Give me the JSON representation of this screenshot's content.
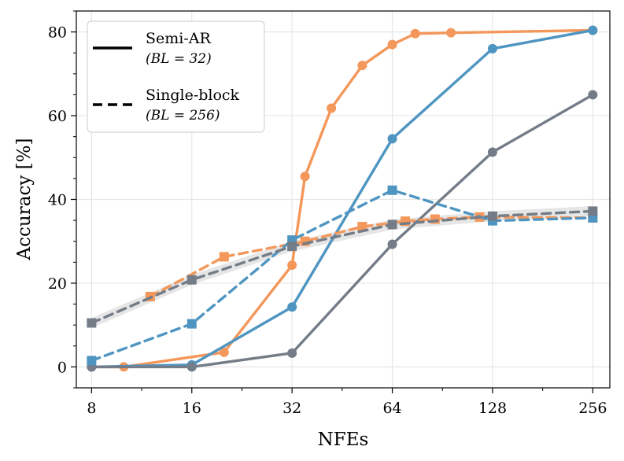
{
  "chart_data": {
    "type": "line",
    "xlabel": "NFEs",
    "ylabel": "Accuracy [%]",
    "x_scale": "log2",
    "xlim": [
      7.2,
      288
    ],
    "ylim": [
      -5,
      85
    ],
    "x_ticks": [
      {
        "value": 8,
        "label": "8"
      },
      {
        "value": 16,
        "label": "16"
      },
      {
        "value": 32,
        "label": "32"
      },
      {
        "value": 64,
        "label": "64"
      },
      {
        "value": 128,
        "label": "128"
      },
      {
        "value": 256,
        "label": "256"
      }
    ],
    "y_ticks": [
      {
        "value": 0,
        "label": "0"
      },
      {
        "value": 20,
        "label": "20"
      },
      {
        "value": 40,
        "label": "40"
      },
      {
        "value": 60,
        "label": "60"
      },
      {
        "value": 80,
        "label": "80"
      }
    ],
    "grid": true,
    "legend": {
      "position": "top-left",
      "entries": [
        {
          "label": "Semi-AR",
          "sublabel": "(BL = 32)",
          "style": "solid"
        },
        {
          "label": "Single-block",
          "sublabel": "(BL = 256)",
          "style": "dashed"
        }
      ]
    },
    "series": [
      {
        "name": "orange-semi-ar",
        "color": "#f4975a",
        "style": "solid",
        "marker": "circle",
        "x": [
          8,
          10,
          20,
          32,
          35,
          42,
          52,
          64,
          75,
          96,
          256
        ],
        "y": [
          0.0,
          0.0,
          3.5,
          24.3,
          45.5,
          61.8,
          72.0,
          77.0,
          79.6,
          79.8,
          80.4
        ]
      },
      {
        "name": "blue-semi-ar",
        "color": "#4f95c1",
        "style": "solid",
        "marker": "circle",
        "x": [
          8,
          16,
          32,
          64,
          128,
          256
        ],
        "y": [
          0.0,
          0.5,
          14.3,
          54.5,
          76.0,
          80.4
        ]
      },
      {
        "name": "gray-semi-ar",
        "color": "#747d87",
        "style": "solid",
        "marker": "circle",
        "x": [
          8,
          16,
          32,
          64,
          128,
          256
        ],
        "y": [
          0.0,
          0.0,
          3.3,
          29.3,
          51.3,
          65.0
        ]
      },
      {
        "name": "orange-single-block",
        "color": "#f4975a",
        "style": "dashed",
        "marker": "square",
        "x": [
          12,
          20,
          35,
          52,
          70,
          86,
          117,
          256
        ],
        "y": [
          16.8,
          26.3,
          30.0,
          33.5,
          34.8,
          35.3,
          35.8,
          35.6
        ]
      },
      {
        "name": "blue-single-block",
        "color": "#4f95c1",
        "style": "dashed",
        "marker": "square",
        "x": [
          8,
          16,
          32,
          64,
          128,
          256
        ],
        "y": [
          1.5,
          10.3,
          30.3,
          42.2,
          34.9,
          35.6
        ]
      },
      {
        "name": "gray-single-block",
        "color": "#747d87",
        "style": "dashed",
        "marker": "square",
        "x": [
          8,
          16,
          32,
          64,
          128,
          256
        ],
        "y": [
          10.5,
          20.8,
          28.8,
          34.0,
          36.0,
          37.2
        ]
      }
    ]
  }
}
